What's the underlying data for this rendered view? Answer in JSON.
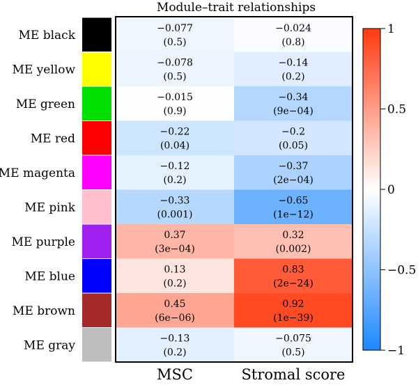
{
  "chart_data": {
    "type": "heatmap",
    "title": "Module–trait relationships",
    "columns": [
      "MSC",
      "Stromal score"
    ],
    "rows": [
      {
        "label": "ME black",
        "module_color": "#000000",
        "cells": [
          {
            "value": -0.077,
            "value_text": "−0.077",
            "p_text": "(0.5)"
          },
          {
            "value": -0.024,
            "value_text": "−0.024",
            "p_text": "(0.8)"
          }
        ]
      },
      {
        "label": "ME yellow",
        "module_color": "#ffff00",
        "cells": [
          {
            "value": -0.078,
            "value_text": "−0.078",
            "p_text": "(0.5)"
          },
          {
            "value": -0.14,
            "value_text": "−0.14",
            "p_text": "(0.2)"
          }
        ]
      },
      {
        "label": "ME green",
        "module_color": "#00e000",
        "cells": [
          {
            "value": -0.015,
            "value_text": "−0.015",
            "p_text": "(0.9)"
          },
          {
            "value": -0.34,
            "value_text": "−0.34",
            "p_text": "(9e−04)"
          }
        ]
      },
      {
        "label": "ME red",
        "module_color": "#ff0000",
        "cells": [
          {
            "value": -0.22,
            "value_text": "−0.22",
            "p_text": "(0.04)"
          },
          {
            "value": -0.2,
            "value_text": "−0.2",
            "p_text": "(0.05)"
          }
        ]
      },
      {
        "label": "ME magenta",
        "module_color": "#ff00ff",
        "cells": [
          {
            "value": -0.12,
            "value_text": "−0.12",
            "p_text": "(0.2)"
          },
          {
            "value": -0.37,
            "value_text": "−0.37",
            "p_text": "(2e−04)"
          }
        ]
      },
      {
        "label": "ME pink",
        "module_color": "#ffc0cb",
        "cells": [
          {
            "value": -0.33,
            "value_text": "−0.33",
            "p_text": "(0.001)"
          },
          {
            "value": -0.65,
            "value_text": "−0.65",
            "p_text": "(1e−12)"
          }
        ]
      },
      {
        "label": "ME purple",
        "module_color": "#a020f0",
        "cells": [
          {
            "value": 0.37,
            "value_text": "0.37",
            "p_text": "(3e−04)"
          },
          {
            "value": 0.32,
            "value_text": "0.32",
            "p_text": "(0.002)"
          }
        ]
      },
      {
        "label": "ME blue",
        "module_color": "#0000ff",
        "cells": [
          {
            "value": 0.13,
            "value_text": "0.13",
            "p_text": "(0.2)"
          },
          {
            "value": 0.83,
            "value_text": "0.83",
            "p_text": "(2e−24)"
          }
        ]
      },
      {
        "label": "ME brown",
        "module_color": "#a52a2a",
        "cells": [
          {
            "value": 0.45,
            "value_text": "0.45",
            "p_text": "(6e−06)"
          },
          {
            "value": 0.92,
            "value_text": "0.92",
            "p_text": "(1e−39)"
          }
        ]
      },
      {
        "label": "ME gray",
        "module_color": "#bebebe",
        "cells": [
          {
            "value": -0.13,
            "value_text": "−0.13",
            "p_text": "(0.2)"
          },
          {
            "value": -0.075,
            "value_text": "−0.075",
            "p_text": "(0.5)"
          }
        ]
      }
    ],
    "colorbar": {
      "range": [
        -1,
        1
      ],
      "ticks": [
        1,
        0.5,
        0,
        -0.5,
        -1
      ],
      "tick_labels": [
        "1",
        "0.5",
        "0",
        "−0.5",
        "−1"
      ],
      "low_color": "#1e88ff",
      "mid_color": "#ffffff",
      "high_color": "#ff3a10"
    }
  }
}
